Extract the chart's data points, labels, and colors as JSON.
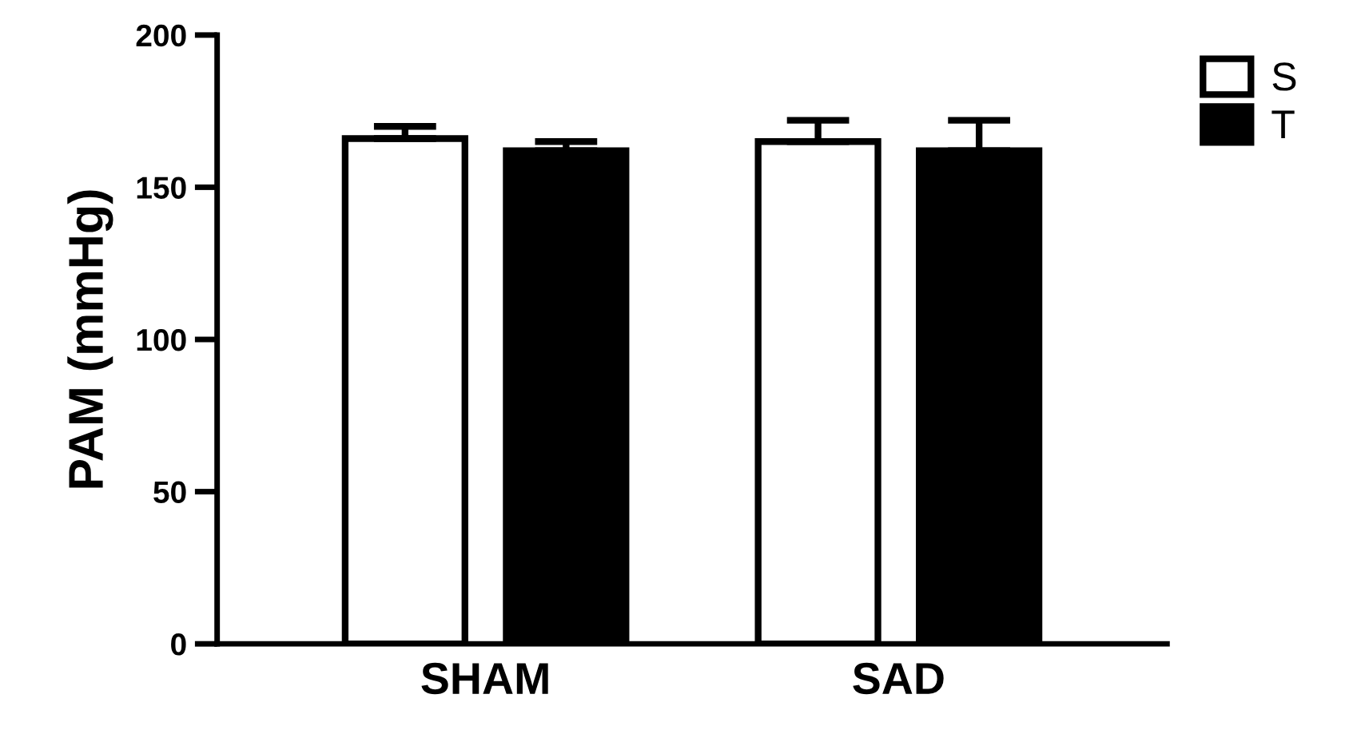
{
  "chart_data": {
    "type": "bar",
    "ylabel": "PAM (mmHg)",
    "categories": [
      "SHAM",
      "SAD"
    ],
    "series": [
      {
        "name": "S",
        "color": "#ffffff",
        "values": [
          166,
          165
        ],
        "errors": [
          [
            166,
            170
          ],
          [
            165,
            172
          ]
        ]
      },
      {
        "name": "T",
        "color": "#000000",
        "values": [
          162,
          162
        ],
        "errors": [
          [
            162,
            165
          ],
          [
            162,
            172
          ]
        ]
      }
    ],
    "ylim": [
      0,
      200
    ],
    "yticks": [
      0,
      50,
      100,
      150,
      200
    ],
    "grid": false,
    "legend": "top right"
  }
}
